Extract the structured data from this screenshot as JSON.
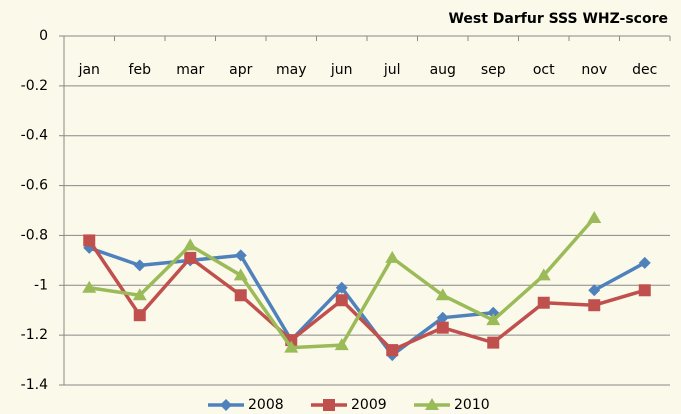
{
  "chart_data": {
    "type": "line",
    "title": "West Darfur SSS WHZ-score",
    "categories": [
      "jan",
      "feb",
      "mar",
      "apr",
      "may",
      "jun",
      "jul",
      "aug",
      "sep",
      "oct",
      "nov",
      "dec"
    ],
    "series": [
      {
        "name": "2008",
        "color": "#4f81bd",
        "marker": "diamond",
        "values": [
          -0.85,
          -0.92,
          -0.9,
          -0.88,
          -1.22,
          -1.01,
          -1.28,
          -1.13,
          -1.11,
          null,
          -1.02,
          -0.91
        ]
      },
      {
        "name": "2009",
        "color": "#c0504d",
        "marker": "square",
        "values": [
          -0.82,
          -1.12,
          -0.89,
          -1.04,
          -1.22,
          -1.06,
          -1.26,
          -1.17,
          -1.23,
          -1.07,
          -1.08,
          -1.02
        ]
      },
      {
        "name": "2010",
        "color": "#9bbb59",
        "marker": "triangle",
        "values": [
          -1.01,
          -1.04,
          -0.84,
          -0.96,
          -1.25,
          -1.24,
          -0.89,
          -1.04,
          -1.14,
          -0.96,
          -0.73,
          null
        ]
      }
    ],
    "ylim": [
      -1.4,
      0
    ],
    "yticks": [
      0,
      -0.2,
      -0.4,
      -0.6,
      -0.8,
      -1,
      -1.2,
      -1.4
    ],
    "grid": true,
    "legend": "bottom"
  }
}
